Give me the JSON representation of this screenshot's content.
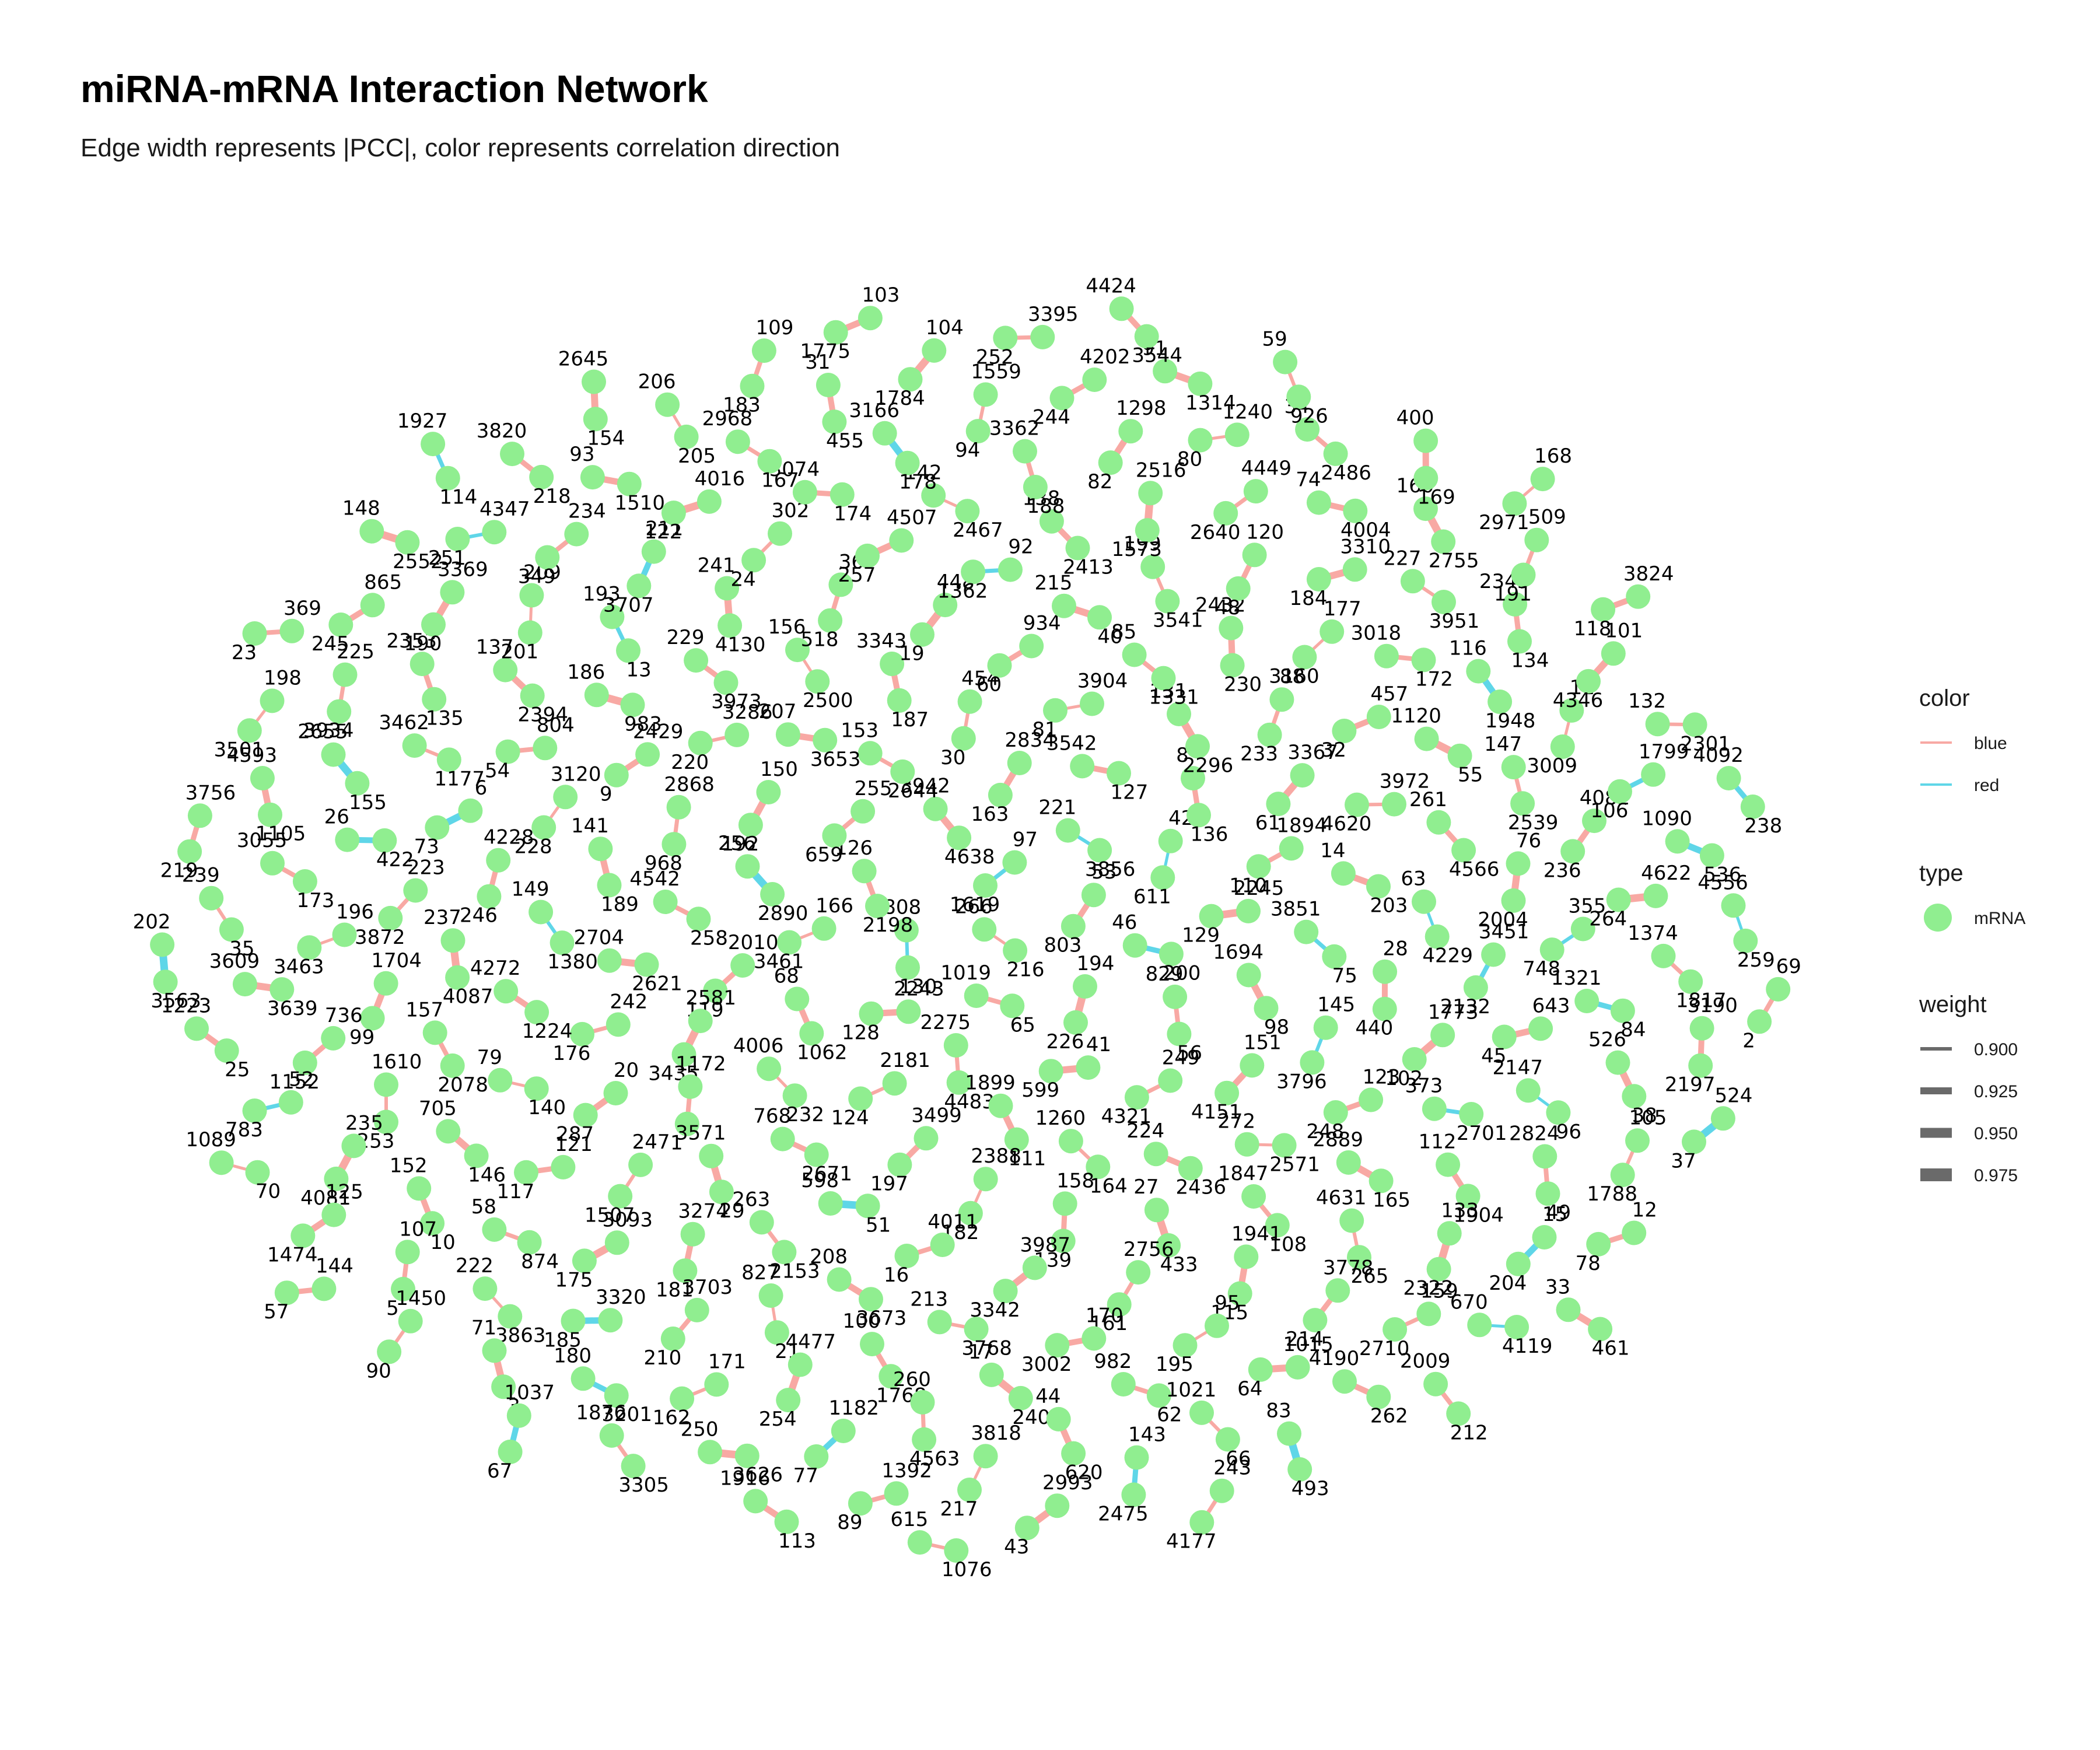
{
  "title": "miRNA-mRNA Interaction Network",
  "subtitle": "Edge width represents |PCC|, color represents correlation direction",
  "colors": {
    "node": "#90EE90",
    "edge_blue_label": "#F8A9A4",
    "edge_red_label": "#5FD6E8",
    "leader": "#000000",
    "background": "#FFFFFF"
  },
  "legend": {
    "color": {
      "title": "color",
      "items": [
        {
          "label": "blue",
          "color": "#F8A9A4"
        },
        {
          "label": "red",
          "color": "#5FD6E8"
        }
      ]
    },
    "type": {
      "title": "type",
      "items": [
        {
          "label": "mRNA",
          "color": "#90EE90"
        }
      ]
    },
    "weight": {
      "title": "weight",
      "items": [
        {
          "label": "0.900",
          "value": 0.9
        },
        {
          "label": "0.925",
          "value": 0.925
        },
        {
          "label": "0.950",
          "value": 0.95
        },
        {
          "label": "0.975",
          "value": 0.975
        }
      ]
    }
  },
  "network": {
    "pairs": [
      [
        "266",
        "216",
        "b"
      ],
      [
        "3808",
        "130",
        "r"
      ],
      [
        "97",
        "1619",
        "r"
      ],
      [
        "1019",
        "65",
        "b"
      ],
      [
        "126",
        "2198",
        "b"
      ],
      [
        "53",
        "803",
        "b"
      ],
      [
        "2243",
        "128",
        "b"
      ],
      [
        "3942",
        "4638",
        "b"
      ],
      [
        "194",
        "226",
        "b"
      ],
      [
        "166",
        "3461",
        "b"
      ],
      [
        "221",
        "3856",
        "r"
      ],
      [
        "2275",
        "4483",
        "b"
      ],
      [
        "255",
        "659",
        "b"
      ],
      [
        "46",
        "200",
        "r"
      ],
      [
        "68",
        "1062",
        "b"
      ],
      [
        "2834",
        "163",
        "b"
      ],
      [
        "41",
        "599",
        "b"
      ],
      [
        "256",
        "2890",
        "r"
      ],
      [
        "42",
        "611",
        "r"
      ],
      [
        "2181",
        "124",
        "b"
      ],
      [
        "153",
        "2644",
        "b"
      ],
      [
        "829",
        "56",
        "b"
      ],
      [
        "2010",
        "119",
        "b"
      ],
      [
        "3542",
        "127",
        "b"
      ],
      [
        "1899",
        "111",
        "b"
      ],
      [
        "150",
        "192",
        "b"
      ],
      [
        "2245",
        "129",
        "b"
      ],
      [
        "4006",
        "232",
        "b"
      ],
      [
        "454",
        "30",
        "b"
      ],
      [
        "249",
        "4321",
        "b"
      ],
      [
        "4542",
        "258",
        "b"
      ],
      [
        "8",
        "136",
        "b"
      ],
      [
        "3499",
        "197",
        "b"
      ],
      [
        "207",
        "3653",
        "b"
      ],
      [
        "1694",
        "98",
        "b"
      ],
      [
        "2581",
        "3435",
        "b"
      ],
      [
        "3904",
        "81",
        "b"
      ],
      [
        "1260",
        "164",
        "b"
      ],
      [
        "2868",
        "968",
        "b"
      ],
      [
        "1894",
        "110",
        "b"
      ],
      [
        "768",
        "2671",
        "b"
      ],
      [
        "3343",
        "187",
        "b"
      ],
      [
        "151",
        "4151",
        "b"
      ],
      [
        "2704",
        "2621",
        "b"
      ],
      [
        "131",
        "2296",
        "b"
      ],
      [
        "2388",
        "182",
        "b"
      ],
      [
        "3286",
        "220",
        "b"
      ],
      [
        "3851",
        "75",
        "r"
      ],
      [
        "1172",
        "1",
        "b"
      ],
      [
        "934",
        "60",
        "b"
      ],
      [
        "224",
        "2436",
        "b"
      ],
      [
        "141",
        "189",
        "b"
      ],
      [
        "3367",
        "61",
        "b"
      ],
      [
        "598",
        "51",
        "r"
      ],
      [
        "156",
        "2500",
        "b"
      ],
      [
        "145",
        "3796",
        "r"
      ],
      [
        "242",
        "176",
        "b"
      ],
      [
        "85",
        "1331",
        "b"
      ],
      [
        "158",
        "139",
        "b"
      ],
      [
        "2429",
        "9",
        "b"
      ],
      [
        "14",
        "203",
        "b"
      ],
      [
        "3571",
        "29",
        "b"
      ],
      [
        "448",
        "19",
        "b"
      ],
      [
        "272",
        "2571",
        "b"
      ],
      [
        "149",
        "1380",
        "r"
      ],
      [
        "88",
        "233",
        "b"
      ],
      [
        "4011",
        "16",
        "b"
      ],
      [
        "229",
        "3973",
        "b"
      ],
      [
        "28",
        "440",
        "b"
      ],
      [
        "20",
        "287",
        "b"
      ],
      [
        "215",
        "40",
        "b"
      ],
      [
        "27",
        "433",
        "b"
      ],
      [
        "3120",
        "228",
        "b"
      ],
      [
        "3972",
        "4620",
        "b"
      ],
      [
        "263",
        "2153",
        "b"
      ],
      [
        "36",
        "518",
        "b"
      ],
      [
        "123",
        "248",
        "b"
      ],
      [
        "4272",
        "1224",
        "b"
      ],
      [
        "2432",
        "230",
        "b"
      ],
      [
        "3987",
        "3342",
        "b"
      ],
      [
        "186",
        "983",
        "b"
      ],
      [
        "63",
        "4229",
        "r"
      ],
      [
        "247",
        "1507",
        "b"
      ],
      [
        "92",
        "1362",
        "r"
      ],
      [
        "1847",
        "108",
        "b"
      ],
      [
        "4228",
        "246",
        "b"
      ],
      [
        "457",
        "32",
        "b"
      ],
      [
        "208",
        "3673",
        "b"
      ],
      [
        "241",
        "4130",
        "b"
      ],
      [
        "1773",
        "102",
        "b"
      ],
      [
        "79",
        "140",
        "b"
      ],
      [
        "199",
        "3541",
        "b"
      ],
      [
        "2756",
        "161",
        "b"
      ],
      [
        "804",
        "54",
        "b"
      ],
      [
        "261",
        "4566",
        "b"
      ],
      [
        "3274",
        "181",
        "b"
      ],
      [
        "4507",
        "257",
        "b"
      ],
      [
        "2889",
        "165",
        "b"
      ],
      [
        "237",
        "4087",
        "b"
      ],
      [
        "177",
        "3160",
        "b"
      ],
      [
        "213",
        "3768",
        "b"
      ],
      [
        "193",
        "13",
        "r"
      ],
      [
        "3451",
        "2132",
        "r"
      ],
      [
        "121",
        "117",
        "b"
      ],
      [
        "138",
        "2413",
        "b"
      ],
      [
        "1941",
        "115",
        "b"
      ],
      [
        "6",
        "73",
        "r"
      ],
      [
        "1120",
        "55",
        "b"
      ],
      [
        "827",
        "21",
        "b"
      ],
      [
        "302",
        "24",
        "b"
      ],
      [
        "373",
        "2701",
        "r"
      ],
      [
        "157",
        "2078",
        "b"
      ],
      [
        "120",
        "48",
        "b"
      ],
      [
        "170",
        "3002",
        "b"
      ],
      [
        "137",
        "2394",
        "b"
      ],
      [
        "76",
        "2004",
        "b"
      ],
      [
        "3093",
        "175",
        "b"
      ],
      [
        "142",
        "2467",
        "b"
      ],
      [
        "4631",
        "265",
        "b"
      ],
      [
        "223",
        "3872",
        "b"
      ],
      [
        "3018",
        "172",
        "b"
      ],
      [
        "100",
        "1768",
        "b"
      ],
      [
        "211",
        "3707",
        "r"
      ],
      [
        "643",
        "45",
        "b"
      ],
      [
        "705",
        "146",
        "b"
      ],
      [
        "2516",
        "1573",
        "b"
      ],
      [
        "95",
        "195",
        "b"
      ],
      [
        "3462",
        "1177",
        "b"
      ],
      [
        "147",
        "2539",
        "b"
      ],
      [
        "3703",
        "210",
        "b"
      ],
      [
        "3074",
        "174",
        "b"
      ],
      [
        "112",
        "1904",
        "b"
      ],
      [
        "1704",
        "99",
        "b"
      ],
      [
        "3310",
        "184",
        "b"
      ],
      [
        "17",
        "240",
        "b"
      ],
      [
        "209",
        "201",
        "b"
      ],
      [
        "3559",
        "748",
        "r"
      ],
      [
        "58",
        "874",
        "b"
      ],
      [
        "3362",
        "188",
        "b"
      ],
      [
        "3778",
        "214",
        "b"
      ],
      [
        "26",
        "422",
        "r"
      ],
      [
        "116",
        "1948",
        "r"
      ],
      [
        "4477",
        "254",
        "b"
      ],
      [
        "4016",
        "122",
        "b"
      ],
      [
        "2147",
        "96",
        "r"
      ],
      [
        "1610",
        "253",
        "b"
      ],
      [
        "4449",
        "2640",
        "b"
      ],
      [
        "982",
        "62",
        "b"
      ],
      [
        "2353",
        "135",
        "b"
      ],
      [
        "4082",
        "236",
        "b"
      ],
      [
        "3320",
        "185",
        "r"
      ],
      [
        "3166",
        "178",
        "r"
      ],
      [
        "133",
        "2322",
        "b"
      ],
      [
        "196",
        "3463",
        "b"
      ],
      [
        "227",
        "3951",
        "b"
      ],
      [
        "260",
        "4563",
        "b"
      ],
      [
        "234",
        "349",
        "b"
      ],
      [
        "1321",
        "84",
        "r"
      ],
      [
        "152",
        "10",
        "b"
      ],
      [
        "1298",
        "82",
        "b"
      ],
      [
        "1015",
        "64",
        "b"
      ],
      [
        "2655",
        "155",
        "r"
      ],
      [
        "11",
        "3009",
        "b"
      ],
      [
        "171",
        "162",
        "b"
      ],
      [
        "2968",
        "167",
        "b"
      ],
      [
        "2824",
        "49",
        "b"
      ],
      [
        "736",
        "1152",
        "b"
      ],
      [
        "74",
        "4004",
        "b"
      ],
      [
        "44",
        "620",
        "b"
      ],
      [
        "3369",
        "190",
        "b"
      ],
      [
        "4622",
        "264",
        "b"
      ],
      [
        "222",
        "3863",
        "b"
      ],
      [
        "1559",
        "94",
        "b"
      ],
      [
        "159",
        "2710",
        "b"
      ],
      [
        "3055",
        "173",
        "b"
      ],
      [
        "2345",
        "134",
        "b"
      ],
      [
        "1182",
        "77",
        "r"
      ],
      [
        "93",
        "1510",
        "b"
      ],
      [
        "526",
        "38",
        "b"
      ],
      [
        "235",
        "4081",
        "b"
      ],
      [
        "1240",
        "80",
        "b"
      ],
      [
        "1021",
        "66",
        "b"
      ],
      [
        "225",
        "3934",
        "b"
      ],
      [
        "1799",
        "106",
        "r"
      ],
      [
        "180",
        "3201",
        "r"
      ],
      [
        "31",
        "455",
        "b"
      ],
      [
        "15",
        "204",
        "r"
      ],
      [
        "3609",
        "3639",
        "b"
      ],
      [
        "160",
        "2755",
        "b"
      ],
      [
        "3818",
        "217",
        "b"
      ],
      [
        "4347",
        "251",
        "r"
      ],
      [
        "1374",
        "1817",
        "b"
      ],
      [
        "107",
        "5",
        "b"
      ],
      [
        "4202",
        "244",
        "b"
      ],
      [
        "4190",
        "262",
        "b"
      ],
      [
        "4593",
        "1105",
        "b"
      ],
      [
        "101",
        "4346",
        "b"
      ],
      [
        "250",
        "3626",
        "b"
      ],
      [
        "206",
        "205",
        "b"
      ],
      [
        "105",
        "1788",
        "b"
      ],
      [
        "52",
        "783",
        "r"
      ],
      [
        "34",
        "2486",
        "b"
      ],
      [
        "143",
        "2475",
        "r"
      ],
      [
        "865",
        "245",
        "b"
      ],
      [
        "1090",
        "536",
        "r"
      ],
      [
        "71",
        "3",
        "b"
      ],
      [
        "104",
        "1784",
        "b"
      ],
      [
        "670",
        "4119",
        "r"
      ],
      [
        "239",
        "35",
        "b"
      ],
      [
        "509",
        "191",
        "b"
      ],
      [
        "1392",
        "89",
        "b"
      ],
      [
        "3820",
        "218",
        "b"
      ],
      [
        "3190",
        "2197",
        "b"
      ],
      [
        "125",
        "1474",
        "b"
      ],
      [
        "91",
        "1314",
        "b"
      ],
      [
        "83",
        "493",
        "r"
      ],
      [
        "198",
        "3501",
        "b"
      ],
      [
        "132",
        "2301",
        "b"
      ],
      [
        "1876",
        "3305",
        "b"
      ],
      [
        "109",
        "183",
        "b"
      ],
      [
        "12",
        "78",
        "b"
      ],
      [
        "1223",
        "25",
        "b"
      ],
      [
        "400",
        "169",
        "b"
      ],
      [
        "2993",
        "43",
        "b"
      ],
      [
        "148",
        "2552",
        "b"
      ],
      [
        "4556",
        "259",
        "r"
      ],
      [
        "1450",
        "90",
        "b"
      ],
      [
        "3395",
        "252",
        "b"
      ],
      [
        "2009",
        "212",
        "b"
      ],
      [
        "3756",
        "219",
        "b"
      ],
      [
        "3824",
        "118",
        "b"
      ],
      [
        "1916",
        "113",
        "b"
      ],
      [
        "2645",
        "154",
        "b"
      ],
      [
        "524",
        "37",
        "r"
      ],
      [
        "1089",
        "70",
        "b"
      ],
      [
        "59",
        "926",
        "b"
      ],
      [
        "243",
        "4177",
        "b"
      ],
      [
        "369",
        "23",
        "b"
      ],
      [
        "4092",
        "238",
        "r"
      ],
      [
        "1037",
        "67",
        "r"
      ],
      [
        "103",
        "1775",
        "b"
      ],
      [
        "33",
        "461",
        "b"
      ],
      [
        "202",
        "3563",
        "r"
      ],
      [
        "168",
        "2971",
        "b"
      ],
      [
        "615",
        "1076",
        "b"
      ],
      [
        "1927",
        "114",
        "r"
      ],
      [
        "69",
        "2",
        "b"
      ],
      [
        "144",
        "57",
        "b"
      ],
      [
        "4424",
        "3544",
        "b"
      ]
    ]
  }
}
